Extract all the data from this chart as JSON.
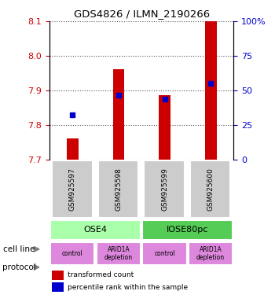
{
  "title": "GDS4826 / ILMN_2190266",
  "samples": [
    "GSM925597",
    "GSM925598",
    "GSM925599",
    "GSM925600"
  ],
  "bar_values": [
    7.762,
    7.96,
    7.885,
    8.1
  ],
  "bar_base": 7.7,
  "blue_dot_values": [
    7.83,
    7.885,
    7.875,
    7.92
  ],
  "blue_dot_percentiles": [
    25,
    48,
    45,
    52
  ],
  "ylim": [
    7.7,
    8.1
  ],
  "yticks_left": [
    7.7,
    7.8,
    7.9,
    8.0,
    8.1
  ],
  "yticks_right": [
    0,
    25,
    50,
    75,
    100
  ],
  "bar_color": "#cc0000",
  "dot_color": "#0000cc",
  "cell_lines": [
    "OSE4",
    "OSE4",
    "IOSE80pc",
    "IOSE80pc"
  ],
  "cell_line_labels": [
    "OSE4",
    "IOSE80pc"
  ],
  "cell_line_colors": [
    "#aaffaa",
    "#55cc55"
  ],
  "protocols": [
    "control",
    "ARID1A\ndepletion",
    "control",
    "ARID1A\ndepletion"
  ],
  "protocol_color": "#dd88dd",
  "sample_box_color": "#cccccc",
  "grid_color": "#555555",
  "left_label_color": "#cc0000",
  "right_label_color": "#0000cc"
}
